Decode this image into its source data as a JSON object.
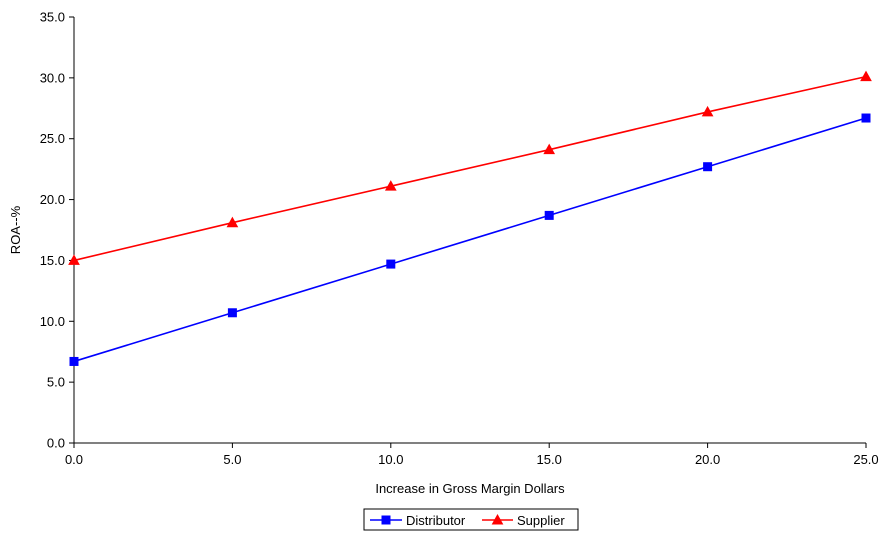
{
  "chart_data": {
    "type": "line",
    "title": "",
    "xlabel": "Increase in Gross Margin Dollars",
    "ylabel": "ROA--%",
    "x": [
      0.0,
      5.0,
      10.0,
      15.0,
      20.0,
      25.0
    ],
    "xticks": [
      "0.0",
      "5.0",
      "10.0",
      "15.0",
      "20.0",
      "25.0"
    ],
    "yticks": [
      "0.0",
      "5.0",
      "10.0",
      "15.0",
      "20.0",
      "25.0",
      "30.0",
      "35.0"
    ],
    "xlim": [
      0,
      25
    ],
    "ylim": [
      0,
      35
    ],
    "grid": false,
    "legend_position": "bottom",
    "series": [
      {
        "name": "Distributor",
        "color": "#0000ff",
        "marker": "square",
        "values": [
          6.7,
          10.7,
          14.7,
          18.7,
          22.7,
          26.7
        ]
      },
      {
        "name": "Supplier",
        "color": "#ff0000",
        "marker": "triangle",
        "values": [
          15.0,
          18.1,
          21.1,
          24.1,
          27.2,
          30.1
        ]
      }
    ]
  }
}
